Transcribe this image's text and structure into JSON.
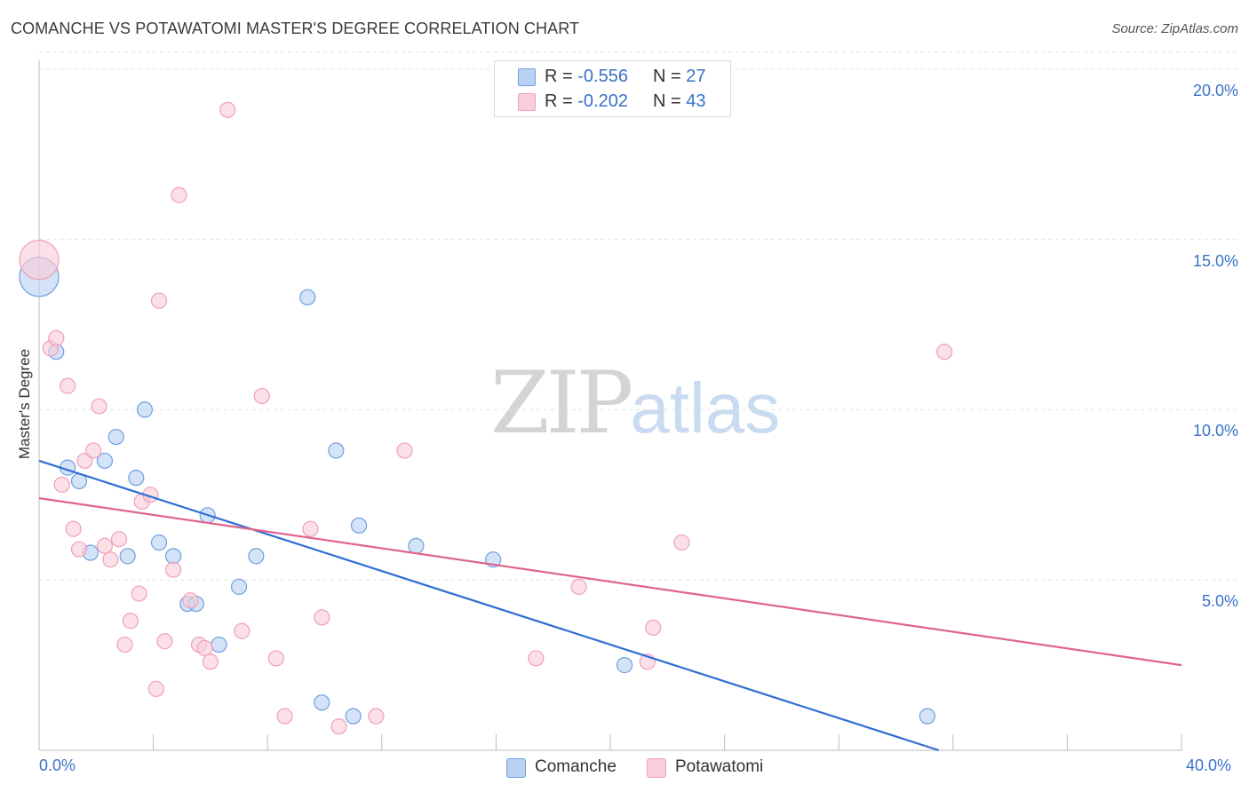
{
  "chart_data": {
    "type": "scatter",
    "title": "COMANCHE VS POTAWATOMI MASTER'S DEGREE CORRELATION CHART",
    "source": "Source: ZipAtlas.com",
    "xlabel": "",
    "ylabel": "Master's Degree",
    "xlim": [
      0,
      40
    ],
    "ylim": [
      0,
      20.5
    ],
    "x_tick_labels": [
      "0.0%",
      "40.0%"
    ],
    "y_ticks": [
      5,
      10,
      15,
      20
    ],
    "y_tick_labels": [
      "5.0%",
      "10.0%",
      "15.0%",
      "20.0%"
    ],
    "grid": true,
    "watermark": {
      "zip": "ZIP",
      "atlas": "atlas"
    },
    "stats": [
      {
        "series": "Comanche",
        "r_label": "R = ",
        "r": "-0.556",
        "n_label": "N = ",
        "n": "27"
      },
      {
        "series": "Potawatomi",
        "r_label": "R = ",
        "r": "-0.202",
        "n_label": "N = ",
        "n": "43"
      }
    ],
    "series": [
      {
        "name": "Comanche",
        "color": "#6f9fe0",
        "fill": "#b9d2f3",
        "line_color": "#2f6fd2",
        "trend": {
          "x0": 0,
          "y0": 8.5,
          "x1": 31.5,
          "y1": 0
        },
        "points": [
          {
            "x": 0.0,
            "y": 13.9,
            "big": true
          },
          {
            "x": 0.6,
            "y": 11.7
          },
          {
            "x": 1.0,
            "y": 8.3
          },
          {
            "x": 1.4,
            "y": 7.9
          },
          {
            "x": 1.8,
            "y": 5.8
          },
          {
            "x": 2.3,
            "y": 8.5
          },
          {
            "x": 2.7,
            "y": 9.2
          },
          {
            "x": 3.1,
            "y": 5.7
          },
          {
            "x": 3.4,
            "y": 8.0
          },
          {
            "x": 3.7,
            "y": 10.0
          },
          {
            "x": 4.2,
            "y": 6.1
          },
          {
            "x": 4.7,
            "y": 5.7
          },
          {
            "x": 5.2,
            "y": 4.3
          },
          {
            "x": 5.5,
            "y": 4.3
          },
          {
            "x": 5.9,
            "y": 6.9
          },
          {
            "x": 6.3,
            "y": 3.1
          },
          {
            "x": 7.0,
            "y": 4.8
          },
          {
            "x": 7.6,
            "y": 5.7
          },
          {
            "x": 9.4,
            "y": 13.3
          },
          {
            "x": 9.9,
            "y": 1.4
          },
          {
            "x": 10.4,
            "y": 8.8
          },
          {
            "x": 11.0,
            "y": 1.0
          },
          {
            "x": 11.2,
            "y": 6.6
          },
          {
            "x": 13.2,
            "y": 6.0
          },
          {
            "x": 15.9,
            "y": 5.6
          },
          {
            "x": 20.5,
            "y": 2.5
          },
          {
            "x": 31.1,
            "y": 1.0
          }
        ]
      },
      {
        "name": "Potawatomi",
        "color": "#f0a0b8",
        "fill": "#f9cdda",
        "line_color": "#e0648e",
        "trend": {
          "x0": 0,
          "y0": 7.4,
          "x1": 40,
          "y1": 2.5
        },
        "points": [
          {
            "x": 0.0,
            "y": 14.4,
            "big": true
          },
          {
            "x": 0.4,
            "y": 11.8
          },
          {
            "x": 0.6,
            "y": 12.1
          },
          {
            "x": 0.8,
            "y": 7.8
          },
          {
            "x": 1.0,
            "y": 10.7
          },
          {
            "x": 1.2,
            "y": 6.5
          },
          {
            "x": 1.4,
            "y": 5.9
          },
          {
            "x": 1.6,
            "y": 8.5
          },
          {
            "x": 1.9,
            "y": 8.8
          },
          {
            "x": 2.1,
            "y": 10.1
          },
          {
            "x": 2.3,
            "y": 6.0
          },
          {
            "x": 2.5,
            "y": 5.6
          },
          {
            "x": 2.8,
            "y": 6.2
          },
          {
            "x": 3.0,
            "y": 3.1
          },
          {
            "x": 3.2,
            "y": 3.8
          },
          {
            "x": 3.5,
            "y": 4.6
          },
          {
            "x": 3.6,
            "y": 7.3
          },
          {
            "x": 3.9,
            "y": 7.5
          },
          {
            "x": 4.1,
            "y": 1.8
          },
          {
            "x": 4.2,
            "y": 13.2
          },
          {
            "x": 4.4,
            "y": 3.2
          },
          {
            "x": 4.7,
            "y": 5.3
          },
          {
            "x": 4.9,
            "y": 16.3
          },
          {
            "x": 5.3,
            "y": 4.4
          },
          {
            "x": 5.6,
            "y": 3.1
          },
          {
            "x": 5.8,
            "y": 3.0
          },
          {
            "x": 6.0,
            "y": 2.6
          },
          {
            "x": 6.6,
            "y": 18.8
          },
          {
            "x": 7.1,
            "y": 3.5
          },
          {
            "x": 7.8,
            "y": 10.4
          },
          {
            "x": 8.3,
            "y": 2.7
          },
          {
            "x": 8.6,
            "y": 1.0
          },
          {
            "x": 9.5,
            "y": 6.5
          },
          {
            "x": 9.9,
            "y": 3.9
          },
          {
            "x": 10.5,
            "y": 0.7
          },
          {
            "x": 11.8,
            "y": 1.0
          },
          {
            "x": 12.8,
            "y": 8.8
          },
          {
            "x": 17.4,
            "y": 2.7
          },
          {
            "x": 18.9,
            "y": 4.8
          },
          {
            "x": 21.3,
            "y": 2.6
          },
          {
            "x": 21.5,
            "y": 3.6
          },
          {
            "x": 22.5,
            "y": 6.1
          },
          {
            "x": 31.7,
            "y": 11.7
          }
        ]
      }
    ],
    "legend": [
      "Comanche",
      "Potawatomi"
    ]
  }
}
